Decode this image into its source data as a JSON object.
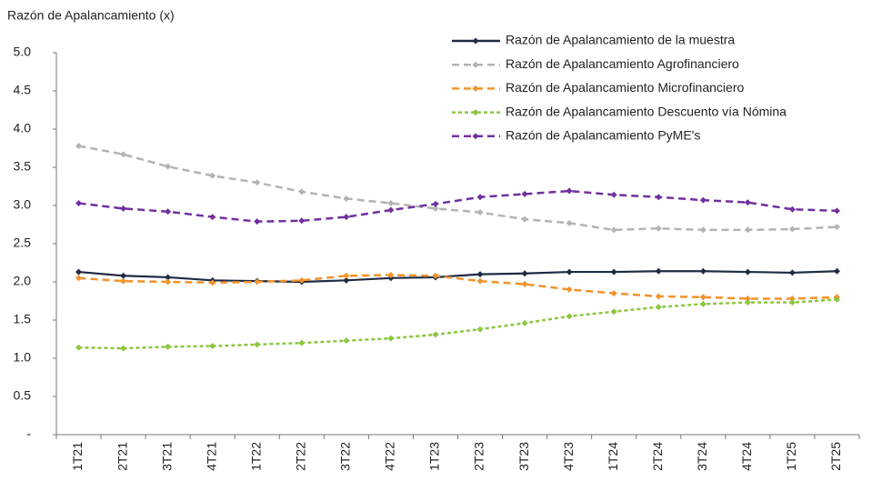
{
  "chart_data": {
    "type": "line",
    "title": "Razón de Apalancamiento (x)",
    "categories": [
      "1T21",
      "2T21",
      "3T21",
      "4T21",
      "1T22",
      "2T22",
      "3T22",
      "4T22",
      "1T23",
      "2T23",
      "3T23",
      "4T23",
      "1T24",
      "2T24",
      "3T24",
      "4T24",
      "1T25",
      "2T25"
    ],
    "series": [
      {
        "name": "Razón de Apalancamiento de la muestra",
        "color": "#1f2a44",
        "dash": "solid",
        "values": [
          2.13,
          2.08,
          2.06,
          2.02,
          2.01,
          2.0,
          2.02,
          2.05,
          2.06,
          2.1,
          2.11,
          2.13,
          2.13,
          2.14,
          2.14,
          2.13,
          2.12,
          2.14
        ]
      },
      {
        "name": "Razón de Apalancamiento Agrofinanciero",
        "color": "#b3b3b3",
        "dash": "dashed",
        "values": [
          3.78,
          3.67,
          3.51,
          3.39,
          3.3,
          3.18,
          3.09,
          3.03,
          2.96,
          2.91,
          2.82,
          2.77,
          2.68,
          2.7,
          2.68,
          2.68,
          2.69,
          2.72
        ]
      },
      {
        "name": "Razón de Apalancamiento Microfinanciero",
        "color": "#f0932b",
        "dash": "dashed",
        "values": [
          2.05,
          2.01,
          2.0,
          1.99,
          2.0,
          2.02,
          2.08,
          2.09,
          2.08,
          2.01,
          1.97,
          1.9,
          1.85,
          1.81,
          1.8,
          1.78,
          1.78,
          1.8
        ]
      },
      {
        "name": "Razón de Apalancamiento Descuento vía Nómina",
        "color": "#8dc63f",
        "dash": "dotted",
        "values": [
          1.14,
          1.13,
          1.15,
          1.16,
          1.18,
          1.2,
          1.23,
          1.26,
          1.31,
          1.38,
          1.46,
          1.55,
          1.61,
          1.67,
          1.71,
          1.73,
          1.73,
          1.77
        ]
      },
      {
        "name": "Razón de Apalancamiento PyME's",
        "color": "#7030a0",
        "dash": "dashed",
        "values": [
          3.03,
          2.96,
          2.92,
          2.85,
          2.79,
          2.8,
          2.85,
          2.94,
          3.02,
          3.11,
          3.15,
          3.19,
          3.14,
          3.11,
          3.07,
          3.04,
          2.95,
          2.93
        ]
      }
    ],
    "ylim": [
      0,
      5
    ],
    "yticks": [
      {
        "value": 0,
        "label": "-"
      },
      {
        "value": 0.5,
        "label": "0.5"
      },
      {
        "value": 1,
        "label": "1.0"
      },
      {
        "value": 1.5,
        "label": "1.5"
      },
      {
        "value": 2,
        "label": "2.0"
      },
      {
        "value": 2.5,
        "label": "2.5"
      },
      {
        "value": 3,
        "label": "3.0"
      },
      {
        "value": 3.5,
        "label": "3.5"
      },
      {
        "value": 4,
        "label": "4.0"
      },
      {
        "value": 4.5,
        "label": "4.5"
      },
      {
        "value": 5,
        "label": "5.0"
      }
    ],
    "grid": false,
    "legend": "top-right"
  }
}
